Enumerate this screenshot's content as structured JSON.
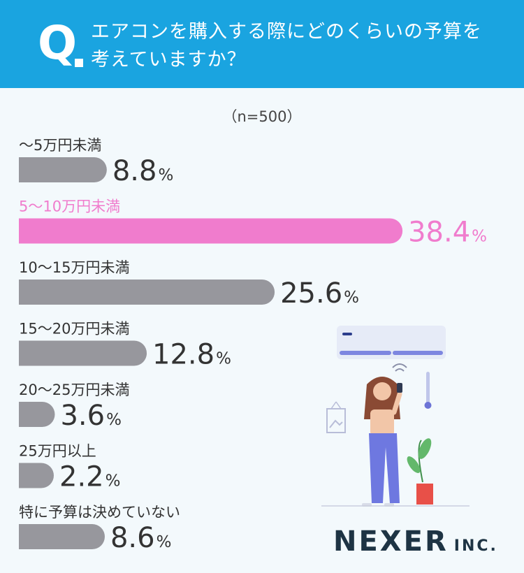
{
  "question": {
    "mark": "Q",
    "line1": "エアコンを購入する際にどのくらいの予算を",
    "line2": "考えていますか？"
  },
  "sample": "（n=500）",
  "colors": {
    "header": "#1aa4e0",
    "bar": "#97979d",
    "highlight": "#f07ccd",
    "text": "#333333"
  },
  "chart_data": {
    "type": "bar",
    "orientation": "horizontal",
    "unit": "%",
    "categories": [
      "〜5万円未満",
      "5〜10万円未満",
      "10〜15万円未満",
      "15〜20万円未満",
      "20〜25万円未満",
      "25万円以上",
      "特に予算は決めていない"
    ],
    "values": [
      8.8,
      38.4,
      25.6,
      12.8,
      3.6,
      2.2,
      8.6
    ],
    "value_labels": [
      "8.8",
      "38.4",
      "25.6",
      "12.8",
      "3.6",
      "2.2",
      "8.6"
    ],
    "highlight_index": 1
  },
  "logo": {
    "main": "NEXER",
    "sub": "INC."
  }
}
